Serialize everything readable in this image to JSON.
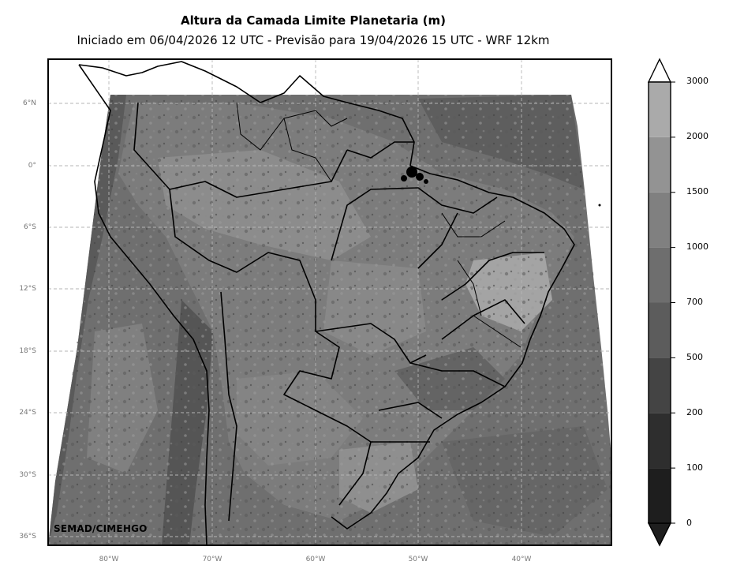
{
  "title": "Altura da Camada Limite Planetaria (m)",
  "subtitle": "Iniciado em 06/04/2026 12 UTC - Previsão para 19/04/2026 15 UTC - WRF 12km",
  "credit": "SEMAD/CIMEHGO",
  "lat_labels": [
    "6°N",
    "0°",
    "6°S",
    "12°S",
    "18°S",
    "24°S",
    "30°S",
    "36°S"
  ],
  "lon_labels": [
    "80°W",
    "70°W",
    "60°W",
    "50°W",
    "40°W"
  ],
  "colorbar": {
    "labels": [
      "0",
      "100",
      "200",
      "500",
      "700",
      "1000",
      "1500",
      "2000",
      "3000"
    ],
    "colors": [
      "#1e1e1e",
      "#2e2e2e",
      "#444444",
      "#5c5c5c",
      "#6e6e6e",
      "#808080",
      "#939393",
      "#aaaaaa",
      "#e3e3e3"
    ],
    "extend": "both"
  },
  "colors": {
    "map_background": "#6f6f6f",
    "land_highlight": "#9a9a9a",
    "border_line": "#000000",
    "grid_line": "#b5b5b5"
  }
}
